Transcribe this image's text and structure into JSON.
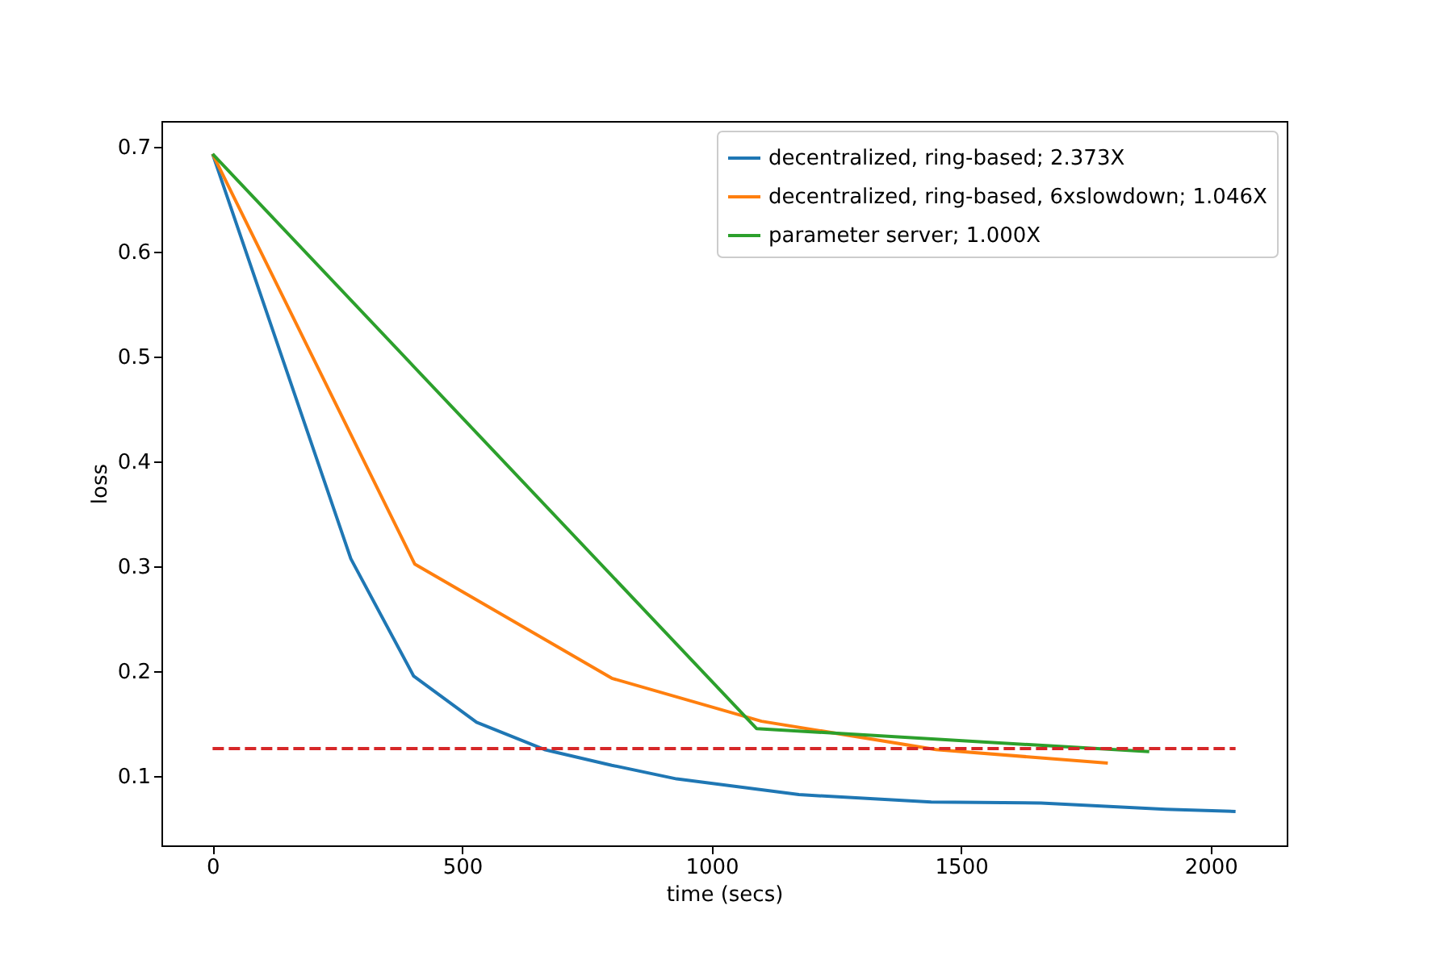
{
  "chart_data": {
    "type": "line",
    "xlabel": "time (secs)",
    "ylabel": "loss",
    "xlim": [
      -102.5,
      2152.5
    ],
    "ylim": [
      0.0336,
      0.7245
    ],
    "xticks": [
      0,
      500,
      1000,
      1500,
      2000
    ],
    "yticks": [
      0.1,
      0.2,
      0.3,
      0.4,
      0.5,
      0.6,
      0.7
    ],
    "grid": false,
    "legend": "top right",
    "marker": "none",
    "line_style": "solid",
    "series": [
      {
        "name": "decentralized, ring-based; 2.373X",
        "color": "#1f77b4",
        "x": [
          0,
          277,
          403,
          529,
          665,
          800,
          930,
          1175,
          1440,
          1660,
          1910,
          2050
        ],
        "values": [
          0.693,
          0.307,
          0.195,
          0.151,
          0.125,
          0.11,
          0.097,
          0.082,
          0.075,
          0.074,
          0.068,
          0.066
        ]
      },
      {
        "name": "decentralized, ring-based, 6xslowdown; 1.046X",
        "color": "#ff7f0e",
        "x": [
          0,
          405,
          800,
          1100,
          1450,
          1794
        ],
        "values": [
          0.693,
          0.302,
          0.193,
          0.152,
          0.125,
          0.112
        ]
      },
      {
        "name": "parameter server; 1.000X",
        "color": "#2ca02c",
        "x": [
          0,
          1090,
          1877
        ],
        "values": [
          0.693,
          0.145,
          0.123
        ]
      },
      {
        "color": "#d62728",
        "line_style": "dashed",
        "x": [
          0,
          2050
        ],
        "values": [
          0.126,
          0.126
        ]
      }
    ]
  }
}
